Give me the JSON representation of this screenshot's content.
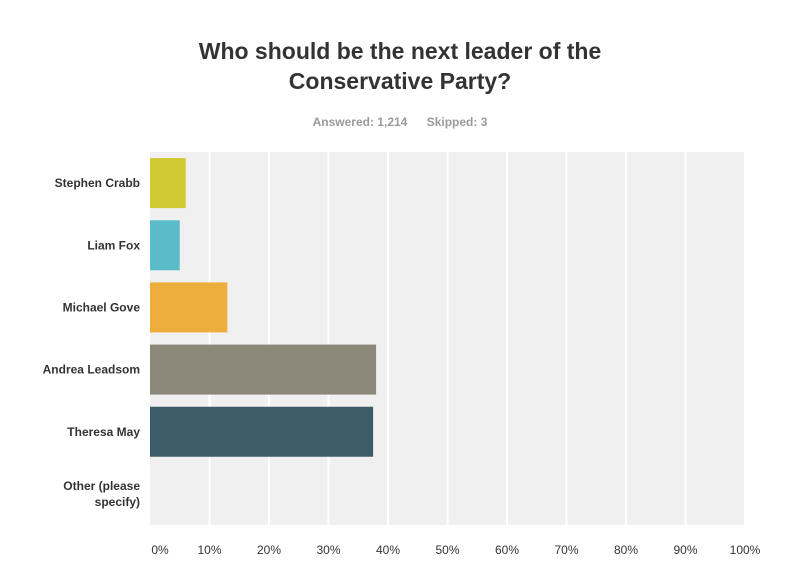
{
  "chart_data": {
    "type": "bar",
    "orientation": "horizontal",
    "title": "Who should be the next leader of the Conservative Party?",
    "answered_label": "Answered: 1,214",
    "skipped_label": "Skipped: 3",
    "categories": [
      "Stephen Crabb",
      "Liam Fox",
      "Michael Gove",
      "Andrea Leadsom",
      "Theresa May",
      "Other (please specify)"
    ],
    "category_lines": [
      [
        "Stephen Crabb"
      ],
      [
        "Liam Fox"
      ],
      [
        "Michael Gove"
      ],
      [
        "Andrea Leadsom"
      ],
      [
        "Theresa May"
      ],
      [
        "Other (please",
        "specify)"
      ]
    ],
    "values": [
      6,
      5,
      13,
      38,
      37.5,
      0
    ],
    "colors": [
      "#d2c932",
      "#5bbcc9",
      "#eeae3c",
      "#8b8779",
      "#3d5c6a",
      "#cccccc"
    ],
    "xlim": [
      0,
      100
    ],
    "xticks": [
      0,
      10,
      20,
      30,
      40,
      50,
      60,
      70,
      80,
      90,
      100
    ],
    "xtick_labels": [
      "0%",
      "10%",
      "20%",
      "30%",
      "40%",
      "50%",
      "60%",
      "70%",
      "80%",
      "90%",
      "100%"
    ],
    "grid": true,
    "legend": "none"
  }
}
